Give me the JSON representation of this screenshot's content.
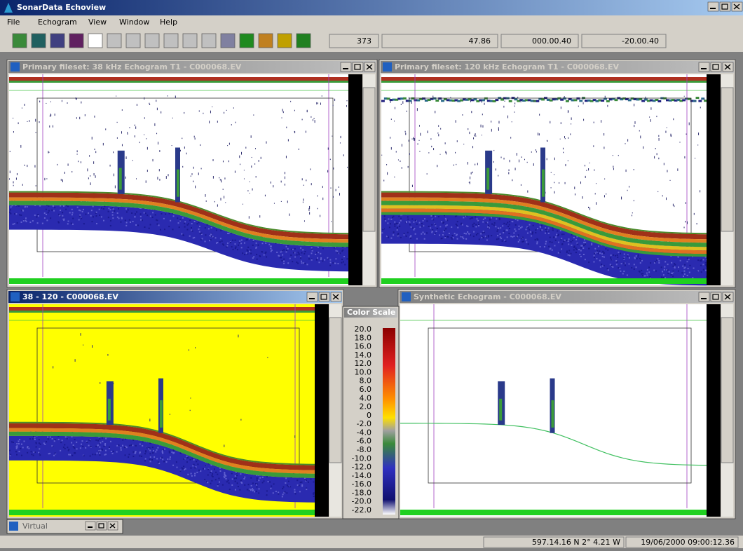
{
  "app": {
    "title": "SonarData Echoview",
    "menu": [
      "File",
      "Echogram",
      "View",
      "Window",
      "Help"
    ],
    "toolbar_fields": [
      "373",
      "47.86",
      "000.00.40",
      "-20.00.40"
    ]
  },
  "windows": [
    {
      "title": "Primary fileset: 38 kHz Echogram T1 - C000068.EV"
    },
    {
      "title": "Primary fileset: 120 kHz Echogram T1 - C000068.EV"
    },
    {
      "title": "38 - 120 - C000068.EV"
    },
    {
      "title": "Synthetic Echogram - C000068.EV"
    }
  ],
  "color_scale": {
    "title": "Color Scale",
    "labels": [
      "20.0",
      "18.0",
      "16.0",
      "14.0",
      "12.0",
      "10.0",
      "8.0",
      "6.0",
      "4.0",
      "2.0",
      "0",
      "-2.0",
      "-4.0",
      "-6.0",
      "-8.0",
      "-10.0",
      "-12.0",
      "-14.0",
      "-16.0",
      "-18.0",
      "-20.0",
      "-22.0"
    ]
  },
  "minimized": {
    "title": "Virtual"
  },
  "status": [
    "597.14.16 N 2° 4.21 W",
    "19/06/2000 09:00:12.36"
  ]
}
